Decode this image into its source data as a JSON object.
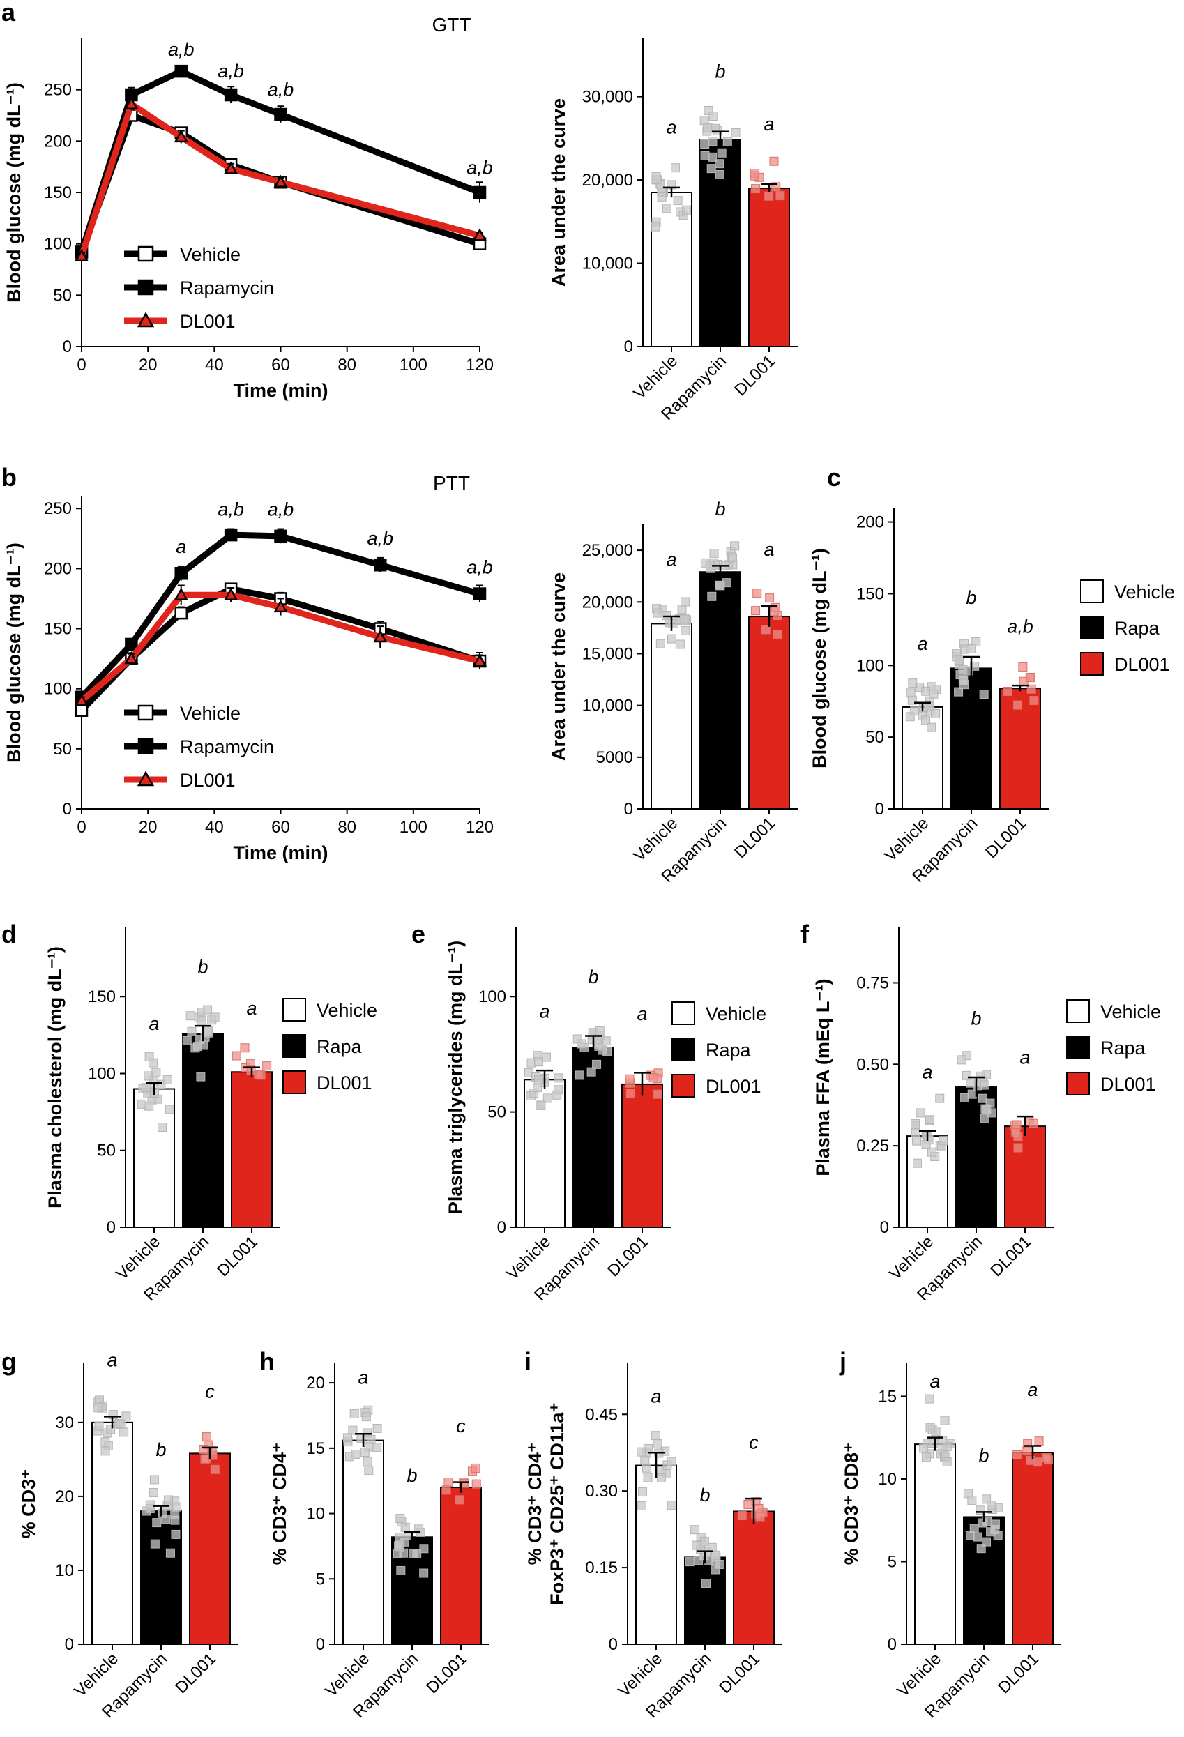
{
  "colors": {
    "vehicle": "#ffffff",
    "rapamycin": "#000000",
    "dl001": "#e0261c",
    "grey_point": "#c8c8c8",
    "red_point": "#ee8f88",
    "axis": "#000000"
  },
  "chart_data": [
    {
      "id": "a-line",
      "panel": "a",
      "type": "line",
      "title": "GTT",
      "xlabel": "Time (min)",
      "ylabel": "Blood glucose (mg dL⁻¹)",
      "xlim": [
        0,
        120
      ],
      "ylim": [
        0,
        300
      ],
      "xticks": [
        "0",
        "20",
        "40",
        "60",
        "80",
        "100",
        "120"
      ],
      "yticks": [
        "0",
        "50",
        "100",
        "150",
        "200",
        "250"
      ],
      "x": [
        0,
        15,
        30,
        45,
        60,
        120
      ],
      "series": [
        {
          "name": "Vehicle",
          "values": [
            92,
            225,
            208,
            177,
            160,
            100
          ],
          "err": [
            3,
            5,
            5,
            5,
            4,
            4
          ]
        },
        {
          "name": "Rapamycin",
          "values": [
            92,
            245,
            268,
            245,
            226,
            150
          ],
          "err": [
            3,
            7,
            5,
            8,
            8,
            10
          ]
        },
        {
          "name": "DL001",
          "values": [
            88,
            236,
            204,
            173,
            160,
            108
          ],
          "err": [
            3,
            6,
            6,
            5,
            4,
            3
          ]
        }
      ],
      "annotations": [
        {
          "x": 30,
          "y": 283,
          "text": "a,b"
        },
        {
          "x": 45,
          "y": 262,
          "text": "a,b"
        },
        {
          "x": 60,
          "y": 244,
          "text": "a,b"
        },
        {
          "x": 120,
          "y": 168,
          "text": "a,b"
        }
      ],
      "legend": "bottom-left"
    },
    {
      "id": "a-bar",
      "panel": "a",
      "type": "bar",
      "ylabel": "Area under the curve",
      "ylim": [
        0,
        37000
      ],
      "yticks": [
        "0",
        "10,000",
        "20,000",
        "30,000"
      ],
      "categories": [
        "Vehicle",
        "Rapamycin",
        "DL001"
      ],
      "values": [
        18500,
        24800,
        19000
      ],
      "err": [
        600,
        1000,
        500
      ],
      "letters": [
        "a",
        "b",
        "a"
      ]
    },
    {
      "id": "b-line",
      "panel": "b",
      "type": "line",
      "title": "PTT",
      "xlabel": "Time (min)",
      "ylabel": "Blood glucose (mg dL⁻¹)",
      "xlim": [
        0,
        120
      ],
      "ylim": [
        0,
        260
      ],
      "xticks": [
        "0",
        "20",
        "40",
        "60",
        "80",
        "100",
        "120"
      ],
      "yticks": [
        "0",
        "50",
        "100",
        "150",
        "200",
        "250"
      ],
      "x": [
        0,
        15,
        30,
        45,
        60,
        90,
        120
      ],
      "series": [
        {
          "name": "Vehicle",
          "values": [
            82,
            125,
            163,
            183,
            175,
            150,
            123
          ],
          "err": [
            3,
            4,
            5,
            4,
            5,
            6,
            5
          ]
        },
        {
          "name": "Rapamycin",
          "values": [
            93,
            137,
            196,
            228,
            227,
            203,
            179
          ],
          "err": [
            3,
            4,
            6,
            5,
            6,
            6,
            7
          ]
        },
        {
          "name": "DL001",
          "values": [
            90,
            125,
            178,
            178,
            168,
            143,
            123
          ],
          "err": [
            3,
            4,
            8,
            6,
            7,
            9,
            7
          ]
        }
      ],
      "annotations": [
        {
          "x": 30,
          "y": 213,
          "text": "a"
        },
        {
          "x": 45,
          "y": 244,
          "text": "a,b"
        },
        {
          "x": 60,
          "y": 244,
          "text": "a,b"
        },
        {
          "x": 90,
          "y": 220,
          "text": "a,b"
        },
        {
          "x": 120,
          "y": 196,
          "text": "a,b"
        }
      ],
      "legend": "bottom-left"
    },
    {
      "id": "b-bar",
      "panel": "b",
      "type": "bar",
      "ylabel": "Area under the curve",
      "ylim": [
        0,
        27500
      ],
      "yticks": [
        "0",
        "5000",
        "10,000",
        "15,000",
        "20,000",
        "25,000"
      ],
      "categories": [
        "Vehicle",
        "Rapamycin",
        "DL001"
      ],
      "values": [
        17900,
        22900,
        18600
      ],
      "err": [
        700,
        600,
        1000
      ],
      "letters": [
        "a",
        "b",
        "a"
      ]
    },
    {
      "id": "c",
      "panel": "c",
      "type": "bar",
      "ylabel": "Blood glucose (mg dL⁻¹)",
      "ylim": [
        0,
        210
      ],
      "yticks": [
        "0",
        "50",
        "100",
        "150",
        "200"
      ],
      "categories": [
        "Vehicle",
        "Rapamycin",
        "DL001"
      ],
      "values": [
        71,
        98,
        84
      ],
      "err": [
        3,
        8,
        2
      ],
      "letters": [
        "a",
        "b",
        "a,b"
      ],
      "legend": [
        "Vehicle",
        "Rapa",
        "DL001"
      ]
    },
    {
      "id": "d",
      "panel": "d",
      "type": "bar",
      "ylabel": "Plasma cholesterol (mg dL⁻¹)",
      "ylim": [
        0,
        195
      ],
      "yticks": [
        "0",
        "50",
        "100",
        "150"
      ],
      "categories": [
        "Vehicle",
        "Rapamycin",
        "DL001"
      ],
      "values": [
        90,
        126,
        101
      ],
      "err": [
        4,
        5,
        3
      ],
      "letters": [
        "a",
        "b",
        "a"
      ],
      "legend": [
        "Vehicle",
        "Rapa",
        "DL001"
      ]
    },
    {
      "id": "e",
      "panel": "e",
      "type": "bar",
      "ylabel": "Plasma triglycerides (mg dL⁻¹)",
      "ylim": [
        0,
        130
      ],
      "yticks": [
        "0",
        "50",
        "100"
      ],
      "categories": [
        "Vehicle",
        "Rapamycin",
        "DL001"
      ],
      "values": [
        64,
        78,
        62
      ],
      "err": [
        4,
        5,
        5
      ],
      "letters": [
        "a",
        "b",
        "a"
      ],
      "legend": [
        "Vehicle",
        "Rapa",
        "DL001"
      ]
    },
    {
      "id": "f",
      "panel": "f",
      "type": "bar",
      "ylabel": "Plasma FFA (mEq L⁻¹)",
      "ylim": [
        0,
        0.92
      ],
      "yticks": [
        "0",
        "0.25",
        "0.50",
        "0.75"
      ],
      "categories": [
        "Vehicle",
        "Rapamycin",
        "DL001"
      ],
      "values": [
        0.28,
        0.43,
        0.31
      ],
      "err": [
        0.015,
        0.03,
        0.03
      ],
      "letters": [
        "a",
        "b",
        "a"
      ],
      "legend": [
        "Vehicle",
        "Rapa",
        "DL001"
      ]
    },
    {
      "id": "g",
      "panel": "g",
      "type": "bar",
      "ylabel": "% CD3⁺",
      "ylim": [
        0,
        38
      ],
      "yticks": [
        "0",
        "10",
        "20",
        "30"
      ],
      "categories": [
        "Vehicle",
        "Rapamycin",
        "DL001"
      ],
      "values": [
        30,
        18,
        25.8
      ],
      "err": [
        0.8,
        0.7,
        0.8
      ],
      "letters": [
        "a",
        "b",
        "c"
      ]
    },
    {
      "id": "h",
      "panel": "h",
      "type": "bar",
      "ylabel": "% CD3⁺ CD4⁺",
      "ylim": [
        0,
        21.5
      ],
      "yticks": [
        "0",
        "5",
        "10",
        "15",
        "20"
      ],
      "categories": [
        "Vehicle",
        "Rapamycin",
        "DL001"
      ],
      "values": [
        15.6,
        8.2,
        12
      ],
      "err": [
        0.5,
        0.4,
        0.4
      ],
      "letters": [
        "a",
        "b",
        "c"
      ]
    },
    {
      "id": "i",
      "panel": "i",
      "type": "bar",
      "ylabel": "% CD3⁺ CD4⁺ FoxP3⁺ CD25⁺ CD11a⁺",
      "ylim": [
        0,
        0.55
      ],
      "yticks": [
        "0",
        "0.15",
        "0.30",
        "0.45"
      ],
      "categories": [
        "Vehicle",
        "Rapamycin",
        "DL001"
      ],
      "values": [
        0.35,
        0.17,
        0.26
      ],
      "err": [
        0.025,
        0.012,
        0.025
      ],
      "letters": [
        "a",
        "b",
        "c"
      ]
    },
    {
      "id": "j",
      "panel": "j",
      "type": "bar",
      "ylabel": "% CD3⁺ CD8⁺",
      "ylim": [
        0,
        17
      ],
      "yticks": [
        "0",
        "5",
        "10",
        "15"
      ],
      "categories": [
        "Vehicle",
        "Rapamycin",
        "DL001"
      ],
      "values": [
        12.1,
        7.7,
        11.6
      ],
      "err": [
        0.4,
        0.3,
        0.4
      ],
      "letters": [
        "a",
        "b",
        "a"
      ]
    }
  ]
}
